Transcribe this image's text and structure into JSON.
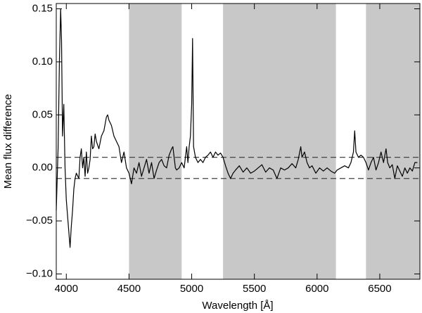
{
  "chart_data": {
    "type": "line",
    "xlabel": "Wavelength [Å]",
    "ylabel": "Mean flux difference",
    "xlim": [
      3920,
      6820
    ],
    "ylim": [
      -0.105,
      0.155
    ],
    "xticks": [
      4000,
      4500,
      5000,
      5500,
      6000,
      6500
    ],
    "yticks": [
      {
        "value": -0.1,
        "label": "−0.10"
      },
      {
        "value": -0.05,
        "label": "−0.05"
      },
      {
        "value": 0,
        "label": "0.00"
      },
      {
        "value": 0.05,
        "label": "0.05"
      },
      {
        "value": 0.1,
        "label": "0.10"
      },
      {
        "value": 0.15,
        "label": "0.15"
      }
    ],
    "color": "#000000",
    "shaded_regions": [
      [
        4500,
        4920
      ],
      [
        5250,
        6150
      ],
      [
        6390,
        6820
      ]
    ],
    "shade_color": "#c8c8c8",
    "hlines": [
      0.01,
      -0.01
    ],
    "x": [
      3920,
      3935,
      3945,
      3955,
      3962,
      3970,
      3980,
      3990,
      4000,
      4010,
      4020,
      4030,
      4040,
      4050,
      4060,
      4070,
      4080,
      4100,
      4110,
      4120,
      4130,
      4140,
      4150,
      4160,
      4170,
      4180,
      4190,
      4200,
      4210,
      4220,
      4230,
      4240,
      4260,
      4280,
      4300,
      4320,
      4330,
      4340,
      4360,
      4380,
      4400,
      4420,
      4440,
      4460,
      4480,
      4500,
      4520,
      4540,
      4560,
      4580,
      4600,
      4620,
      4640,
      4660,
      4680,
      4700,
      4720,
      4740,
      4760,
      4780,
      4800,
      4820,
      4840,
      4850,
      4860,
      4870,
      4880,
      4900,
      4920,
      4940,
      4950,
      4960,
      4970,
      4980,
      4990,
      5000,
      5007,
      5015,
      5030,
      5050,
      5070,
      5090,
      5110,
      5130,
      5150,
      5170,
      5190,
      5210,
      5230,
      5250,
      5270,
      5290,
      5310,
      5330,
      5350,
      5380,
      5410,
      5440,
      5470,
      5500,
      5530,
      5560,
      5590,
      5620,
      5650,
      5680,
      5710,
      5740,
      5770,
      5800,
      5830,
      5850,
      5870,
      5880,
      5900,
      5920,
      5940,
      5960,
      5990,
      6020,
      6050,
      6080,
      6110,
      6140,
      6160,
      6190,
      6220,
      6250,
      6270,
      6290,
      6300,
      6310,
      6330,
      6350,
      6370,
      6390,
      6410,
      6430,
      6450,
      6470,
      6490,
      6510,
      6530,
      6550,
      6563,
      6580,
      6600,
      6620,
      6640,
      6660,
      6680,
      6700,
      6720,
      6740,
      6760,
      6780,
      6800
    ],
    "values": [
      -0.04,
      0.02,
      0.1,
      0.15,
      0.12,
      0.03,
      0.06,
      0.0,
      -0.03,
      -0.045,
      -0.06,
      -0.075,
      -0.055,
      -0.04,
      -0.02,
      -0.01,
      -0.005,
      -0.01,
      0.01,
      0.018,
      0.0,
      0.01,
      -0.008,
      0.015,
      -0.005,
      0.0,
      0.008,
      0.03,
      0.018,
      0.02,
      0.032,
      0.025,
      0.018,
      0.03,
      0.035,
      0.048,
      0.05,
      0.045,
      0.04,
      0.03,
      0.025,
      0.02,
      0.005,
      0.015,
      0.0,
      -0.005,
      -0.015,
      0.0,
      -0.005,
      0.005,
      -0.008,
      0.0,
      0.008,
      -0.005,
      0.005,
      -0.01,
      -0.002,
      0.005,
      0.008,
      0.002,
      0.0,
      0.012,
      0.018,
      0.02,
      0.01,
      0.0,
      -0.002,
      0.0,
      0.005,
      0.0,
      0.01,
      0.02,
      0.005,
      0.02,
      0.03,
      0.06,
      0.122,
      0.02,
      0.01,
      0.005,
      0.008,
      0.005,
      0.01,
      0.012,
      0.015,
      0.01,
      0.015,
      0.012,
      0.014,
      0.01,
      0.002,
      -0.005,
      -0.01,
      -0.005,
      -0.002,
      0.002,
      -0.004,
      0.0,
      -0.005,
      -0.003,
      0.0,
      0.003,
      -0.004,
      0.0,
      -0.002,
      -0.01,
      0.0,
      -0.002,
      0.0,
      0.004,
      0.0,
      0.008,
      0.02,
      0.01,
      0.015,
      0.005,
      0.0,
      0.002,
      -0.005,
      0.0,
      -0.003,
      0.0,
      -0.003,
      -0.005,
      -0.002,
      0.0,
      0.002,
      0.0,
      0.005,
      0.015,
      0.035,
      0.015,
      0.01,
      0.012,
      0.01,
      0.005,
      -0.002,
      0.005,
      0.01,
      -0.002,
      0.005,
      0.015,
      0.005,
      0.018,
      0.005,
      0.0,
      0.003,
      -0.01,
      0.002,
      -0.003,
      -0.008,
      0.0,
      -0.005,
      0.0,
      -0.003,
      0.005,
      0.005
    ]
  }
}
